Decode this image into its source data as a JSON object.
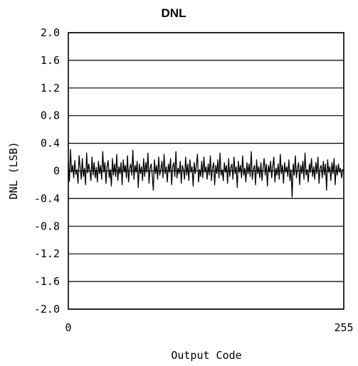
{
  "chart_data": {
    "type": "line",
    "title": "DNL",
    "xlabel": "Output Code",
    "ylabel": "DNL (LSB)",
    "xlim": [
      0,
      255
    ],
    "ylim": [
      -2.0,
      2.0
    ],
    "x_ticks": [
      "0",
      "255"
    ],
    "y_ticks": [
      "2.0",
      "1.6",
      "1.2",
      "0.8",
      "0.4",
      "0",
      "-0.4",
      "-0.8",
      "-1.2",
      "-1.6",
      "-2.0"
    ],
    "grid": "horizontal",
    "series": [
      {
        "values": [
          0.12,
          -0.15,
          0.31,
          -0.02,
          0.08,
          -0.1,
          0.15,
          -0.05,
          0.02,
          -0.18,
          0.22,
          0.05,
          -0.12,
          0.18,
          -0.08,
          0.04,
          -0.2,
          0.26,
          -0.03,
          0.1,
          0.0,
          -0.14,
          0.2,
          -0.06,
          0.12,
          -0.1,
          0.05,
          -0.16,
          0.14,
          -0.04,
          0.08,
          -0.12,
          0.28,
          -0.02,
          0.12,
          -0.18,
          0.06,
          0.15,
          -0.1,
          0.02,
          -0.22,
          0.18,
          -0.06,
          0.1,
          -0.08,
          0.24,
          -0.14,
          0.06,
          -0.04,
          0.12,
          -0.2,
          0.16,
          -0.02,
          0.08,
          -0.1,
          0.22,
          -0.16,
          0.04,
          0.1,
          -0.06,
          0.3,
          -0.12,
          0.08,
          -0.02,
          0.14,
          -0.24,
          0.1,
          -0.04,
          0.06,
          -0.14,
          0.18,
          -0.08,
          0.12,
          -0.02,
          0.26,
          -0.18,
          0.04,
          0.1,
          -0.06,
          -0.28,
          0.16,
          -0.04,
          0.08,
          -0.12,
          0.2,
          -0.06,
          0.02,
          0.14,
          -0.1,
          0.24,
          -0.04,
          0.06,
          -0.16,
          0.1,
          -0.02,
          0.18,
          -0.2,
          0.06,
          0.12,
          -0.08,
          0.28,
          -0.1,
          0.04,
          -0.04,
          0.14,
          -0.18,
          0.08,
          0.02,
          -0.12,
          0.2,
          -0.06,
          0.1,
          -0.14,
          0.16,
          -0.02,
          0.06,
          -0.22,
          0.12,
          -0.04,
          0.08,
          0.24,
          -0.16,
          0.02,
          -0.08,
          0.14,
          -0.1,
          0.2,
          -0.02,
          0.06,
          -0.12,
          0.1,
          -0.06,
          0.22,
          -0.14,
          0.04,
          0.12,
          -0.2,
          0.08,
          -0.04,
          0.16,
          -0.1,
          0.26,
          -0.06,
          0.02,
          -0.14,
          0.12,
          -0.02,
          0.08,
          -0.18,
          0.18,
          -0.08,
          0.04,
          0.1,
          -0.12,
          0.2,
          -0.04,
          0.06,
          -0.24,
          0.14,
          -0.02,
          0.08,
          -0.1,
          0.22,
          -0.06,
          0.04,
          -0.16,
          0.12,
          -0.04,
          0.1,
          -0.08,
          0.28,
          -0.12,
          0.02,
          0.08,
          -0.2,
          0.16,
          -0.04,
          0.06,
          -0.1,
          0.12,
          -0.14,
          0.04,
          0.18,
          -0.06,
          0.1,
          -0.22,
          0.08,
          -0.02,
          0.14,
          -0.1,
          0.06,
          0.2,
          -0.16,
          0.04,
          -0.06,
          0.1,
          -0.12,
          0.24,
          -0.04,
          0.08,
          -0.18,
          0.12,
          -0.02,
          0.06,
          -0.08,
          0.16,
          -0.14,
          0.02,
          -0.38,
          0.1,
          -0.06,
          0.22,
          -0.1,
          0.04,
          0.12,
          -0.2,
          0.08,
          -0.04,
          0.14,
          -0.12,
          0.26,
          -0.06,
          0.02,
          -0.16,
          0.1,
          -0.02,
          0.18,
          -0.08,
          0.06,
          -0.12,
          0.12,
          -0.04,
          0.2,
          -0.18,
          0.04,
          0.08,
          -0.1,
          0.14,
          -0.06,
          0.1,
          -0.28,
          0.16,
          -0.02,
          0.06,
          -0.14,
          0.12,
          -0.04,
          0.18,
          -0.2,
          0.08,
          -0.06,
          0.1,
          -0.02,
          0.04,
          -0.1,
          0.02,
          0.0
        ]
      }
    ]
  }
}
